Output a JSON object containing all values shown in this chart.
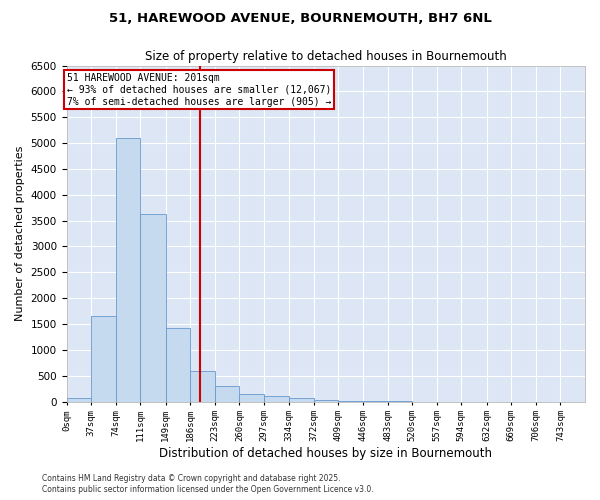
{
  "title1": "51, HAREWOOD AVENUE, BOURNEMOUTH, BH7 6NL",
  "title2": "Size of property relative to detached houses in Bournemouth",
  "xlabel": "Distribution of detached houses by size in Bournemouth",
  "ylabel": "Number of detached properties",
  "bar_color": "#c5d9ef",
  "bar_edge_color": "#6699cc",
  "bins": [
    0,
    37,
    74,
    111,
    149,
    186,
    223,
    260,
    297,
    334,
    372,
    409,
    446,
    483,
    520,
    557,
    594,
    632,
    669,
    706,
    743,
    780
  ],
  "tick_labels": [
    "0sqm",
    "37sqm",
    "74sqm",
    "111sqm",
    "149sqm",
    "186sqm",
    "223sqm",
    "260sqm",
    "297sqm",
    "334sqm",
    "372sqm",
    "409sqm",
    "446sqm",
    "483sqm",
    "520sqm",
    "557sqm",
    "594sqm",
    "632sqm",
    "669sqm",
    "706sqm",
    "743sqm"
  ],
  "values": [
    75,
    1650,
    5100,
    3620,
    1420,
    600,
    310,
    155,
    110,
    60,
    35,
    10,
    4,
    2,
    0,
    0,
    0,
    0,
    0,
    0,
    0
  ],
  "vline_x": 201,
  "vline_color": "#cc0000",
  "annotation_text": "51 HAREWOOD AVENUE: 201sqm\n← 93% of detached houses are smaller (12,067)\n7% of semi-detached houses are larger (905) →",
  "annotation_box_color": "#cc0000",
  "ylim": [
    0,
    6500
  ],
  "yticks": [
    0,
    500,
    1000,
    1500,
    2000,
    2500,
    3000,
    3500,
    4000,
    4500,
    5000,
    5500,
    6000,
    6500
  ],
  "background_color": "#dce6f5",
  "footer1": "Contains HM Land Registry data © Crown copyright and database right 2025.",
  "footer2": "Contains public sector information licensed under the Open Government Licence v3.0."
}
